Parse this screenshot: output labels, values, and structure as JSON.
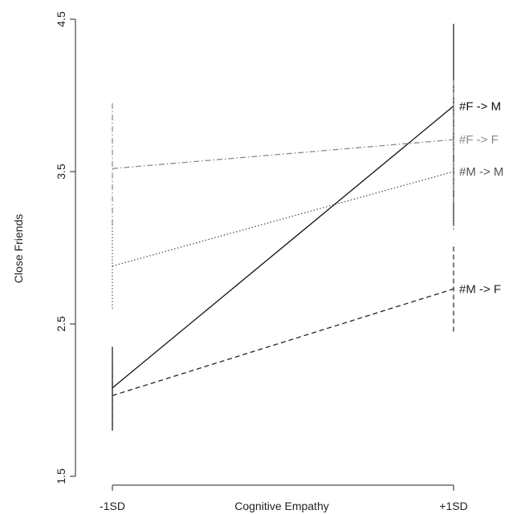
{
  "chart_data": {
    "type": "line",
    "title": "",
    "xlabel": "Cognitive Empathy",
    "ylabel": "Close Friends",
    "categories": [
      "-1SD",
      "+1SD"
    ],
    "ylim": [
      1.5,
      4.5
    ],
    "yticks": [
      "1.5",
      "2.5",
      "3.5",
      "4.5"
    ],
    "grid": false,
    "legend": "inline-right",
    "series": [
      {
        "name": "#F -> M",
        "values": [
          2.08,
          3.93
        ],
        "style": "solid",
        "color": "#111111",
        "error": {
          "low": [
            1.8,
            3.15
          ],
          "high": [
            2.35,
            4.47
          ]
        }
      },
      {
        "name": "#F -> F",
        "values": [
          3.52,
          3.71
        ],
        "style": "dashdot",
        "color": "#888888",
        "error": {
          "low": [
            3.15,
            3.3
          ],
          "high": [
            3.95,
            4.1
          ]
        }
      },
      {
        "name": "#M -> M",
        "values": [
          2.88,
          3.5
        ],
        "style": "dotted",
        "color": "#555555",
        "error": {
          "low": [
            2.6,
            3.12
          ],
          "high": [
            3.17,
            3.88
          ]
        }
      },
      {
        "name": "#M -> F",
        "values": [
          2.03,
          2.73
        ],
        "style": "dashed",
        "color": "#222222",
        "error": {
          "low": [
            1.83,
            2.45
          ],
          "high": [
            2.23,
            3.03
          ]
        }
      }
    ]
  }
}
